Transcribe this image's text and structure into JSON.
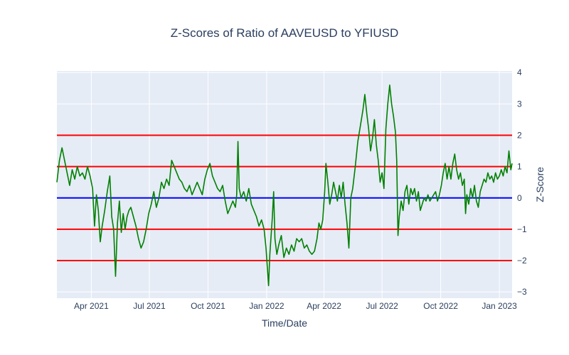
{
  "chart_data": {
    "type": "line",
    "title": "Z-Scores of Ratio of AAVEUSD to YFIUSD",
    "xlabel": "Time/Date",
    "ylabel": "Z-Score",
    "y_axis_side": "right",
    "grid": true,
    "legend": "none",
    "xlim": [
      "2021-02-06",
      "2023-01-21"
    ],
    "ylim": [
      -3.2,
      4.05
    ],
    "x_ticks": [
      {
        "date": "2021-04-01",
        "label": "Apr 2021"
      },
      {
        "date": "2021-07-01",
        "label": "Jul 2021"
      },
      {
        "date": "2021-10-01",
        "label": "Oct 2021"
      },
      {
        "date": "2022-01-01",
        "label": "Jan 2022"
      },
      {
        "date": "2022-04-01",
        "label": "Apr 2022"
      },
      {
        "date": "2022-07-01",
        "label": "Jul 2022"
      },
      {
        "date": "2022-10-01",
        "label": "Oct 2022"
      },
      {
        "date": "2023-01-01",
        "label": "Jan 2023"
      }
    ],
    "y_ticks": [
      {
        "value": 4,
        "label": "4"
      },
      {
        "value": 3,
        "label": "3"
      },
      {
        "value": 2,
        "label": "2"
      },
      {
        "value": 1,
        "label": "1"
      },
      {
        "value": 0,
        "label": "0"
      },
      {
        "value": -1,
        "label": "−1"
      },
      {
        "value": -2,
        "label": "−2"
      },
      {
        "value": -3,
        "label": "−3"
      }
    ],
    "reference_lines": [
      {
        "y": 2,
        "color": "#ff0000"
      },
      {
        "y": 1,
        "color": "#ff0000"
      },
      {
        "y": 0,
        "color": "#0000ff"
      },
      {
        "y": -1,
        "color": "#ff0000"
      },
      {
        "y": -2,
        "color": "#ff0000"
      }
    ],
    "series": [
      {
        "color": "#008000",
        "points": [
          [
            "2021-02-06",
            0.5
          ],
          [
            "2021-02-10",
            1.2
          ],
          [
            "2021-02-14",
            1.6
          ],
          [
            "2021-02-18",
            1.2
          ],
          [
            "2021-02-22",
            0.8
          ],
          [
            "2021-02-26",
            0.4
          ],
          [
            "2021-03-02",
            0.9
          ],
          [
            "2021-03-06",
            0.6
          ],
          [
            "2021-03-10",
            1.0
          ],
          [
            "2021-03-14",
            0.7
          ],
          [
            "2021-03-18",
            0.8
          ],
          [
            "2021-03-22",
            0.6
          ],
          [
            "2021-03-26",
            1.0
          ],
          [
            "2021-03-30",
            0.7
          ],
          [
            "2021-04-03",
            0.3
          ],
          [
            "2021-04-06",
            -0.9
          ],
          [
            "2021-04-09",
            0.1
          ],
          [
            "2021-04-12",
            -0.4
          ],
          [
            "2021-04-15",
            -1.4
          ],
          [
            "2021-04-18",
            -0.9
          ],
          [
            "2021-04-22",
            -0.4
          ],
          [
            "2021-04-26",
            0.2
          ],
          [
            "2021-04-30",
            0.7
          ],
          [
            "2021-05-03",
            -0.6
          ],
          [
            "2021-05-06",
            -1.0
          ],
          [
            "2021-05-09",
            -2.5
          ],
          [
            "2021-05-12",
            -0.8
          ],
          [
            "2021-05-15",
            -0.1
          ],
          [
            "2021-05-18",
            -1.1
          ],
          [
            "2021-05-21",
            -0.5
          ],
          [
            "2021-05-24",
            -1.0
          ],
          [
            "2021-05-27",
            -0.6
          ],
          [
            "2021-05-30",
            -0.4
          ],
          [
            "2021-06-02",
            -0.3
          ],
          [
            "2021-06-06",
            -0.6
          ],
          [
            "2021-06-10",
            -0.9
          ],
          [
            "2021-06-14",
            -1.3
          ],
          [
            "2021-06-18",
            -1.6
          ],
          [
            "2021-06-22",
            -1.4
          ],
          [
            "2021-06-26",
            -1.0
          ],
          [
            "2021-06-30",
            -0.5
          ],
          [
            "2021-07-04",
            -0.2
          ],
          [
            "2021-07-08",
            0.2
          ],
          [
            "2021-07-12",
            -0.3
          ],
          [
            "2021-07-16",
            0.0
          ],
          [
            "2021-07-20",
            0.5
          ],
          [
            "2021-07-24",
            0.3
          ],
          [
            "2021-07-28",
            0.6
          ],
          [
            "2021-08-01",
            0.4
          ],
          [
            "2021-08-05",
            1.2
          ],
          [
            "2021-08-09",
            1.0
          ],
          [
            "2021-08-13",
            0.8
          ],
          [
            "2021-08-17",
            0.6
          ],
          [
            "2021-08-21",
            0.5
          ],
          [
            "2021-08-25",
            0.3
          ],
          [
            "2021-08-29",
            0.2
          ],
          [
            "2021-09-02",
            0.4
          ],
          [
            "2021-09-06",
            0.1
          ],
          [
            "2021-09-10",
            0.3
          ],
          [
            "2021-09-14",
            0.5
          ],
          [
            "2021-09-18",
            0.3
          ],
          [
            "2021-09-22",
            0.1
          ],
          [
            "2021-09-26",
            0.6
          ],
          [
            "2021-09-30",
            0.9
          ],
          [
            "2021-10-04",
            1.1
          ],
          [
            "2021-10-08",
            0.7
          ],
          [
            "2021-10-12",
            0.5
          ],
          [
            "2021-10-16",
            0.3
          ],
          [
            "2021-10-20",
            0.2
          ],
          [
            "2021-10-24",
            0.4
          ],
          [
            "2021-10-28",
            -0.1
          ],
          [
            "2021-11-01",
            -0.5
          ],
          [
            "2021-11-05",
            -0.3
          ],
          [
            "2021-11-09",
            -0.1
          ],
          [
            "2021-11-13",
            -0.3
          ],
          [
            "2021-11-15",
            0.1
          ],
          [
            "2021-11-17",
            1.8
          ],
          [
            "2021-11-19",
            0.3
          ],
          [
            "2021-11-22",
            0.0
          ],
          [
            "2021-11-26",
            0.2
          ],
          [
            "2021-11-30",
            -0.1
          ],
          [
            "2021-12-04",
            0.3
          ],
          [
            "2021-12-08",
            -0.2
          ],
          [
            "2021-12-12",
            -0.4
          ],
          [
            "2021-12-16",
            -0.6
          ],
          [
            "2021-12-20",
            -0.9
          ],
          [
            "2021-12-24",
            -0.7
          ],
          [
            "2021-12-28",
            -1.0
          ],
          [
            "2021-12-31",
            -1.6
          ],
          [
            "2022-01-02",
            -2.2
          ],
          [
            "2022-01-04",
            -2.8
          ],
          [
            "2022-01-06",
            -1.8
          ],
          [
            "2022-01-08",
            -1.2
          ],
          [
            "2022-01-10",
            -0.6
          ],
          [
            "2022-01-12",
            0.2
          ],
          [
            "2022-01-14",
            -1.3
          ],
          [
            "2022-01-17",
            -1.8
          ],
          [
            "2022-01-20",
            -1.5
          ],
          [
            "2022-01-24",
            -1.2
          ],
          [
            "2022-01-28",
            -1.9
          ],
          [
            "2022-02-01",
            -1.6
          ],
          [
            "2022-02-05",
            -1.8
          ],
          [
            "2022-02-09",
            -1.5
          ],
          [
            "2022-02-13",
            -1.7
          ],
          [
            "2022-02-17",
            -1.3
          ],
          [
            "2022-02-21",
            -1.4
          ],
          [
            "2022-02-25",
            -1.3
          ],
          [
            "2022-03-01",
            -1.6
          ],
          [
            "2022-03-05",
            -1.5
          ],
          [
            "2022-03-09",
            -1.7
          ],
          [
            "2022-03-13",
            -1.8
          ],
          [
            "2022-03-17",
            -1.7
          ],
          [
            "2022-03-21",
            -1.3
          ],
          [
            "2022-03-24",
            -0.8
          ],
          [
            "2022-03-27",
            -1.0
          ],
          [
            "2022-03-30",
            -0.7
          ],
          [
            "2022-04-02",
            0.2
          ],
          [
            "2022-04-04",
            1.1
          ],
          [
            "2022-04-07",
            0.5
          ],
          [
            "2022-04-10",
            -0.2
          ],
          [
            "2022-04-13",
            0.1
          ],
          [
            "2022-04-16",
            0.5
          ],
          [
            "2022-04-19",
            0.2
          ],
          [
            "2022-04-22",
            -0.1
          ],
          [
            "2022-04-25",
            0.4
          ],
          [
            "2022-04-28",
            0.0
          ],
          [
            "2022-05-01",
            0.5
          ],
          [
            "2022-05-04",
            -0.2
          ],
          [
            "2022-05-07",
            -0.8
          ],
          [
            "2022-05-10",
            -1.6
          ],
          [
            "2022-05-13",
            0.0
          ],
          [
            "2022-05-16",
            0.3
          ],
          [
            "2022-05-20",
            1.0
          ],
          [
            "2022-05-24",
            1.8
          ],
          [
            "2022-05-28",
            2.3
          ],
          [
            "2022-06-01",
            2.8
          ],
          [
            "2022-06-04",
            3.3
          ],
          [
            "2022-06-07",
            2.7
          ],
          [
            "2022-06-10",
            2.2
          ],
          [
            "2022-06-13",
            1.5
          ],
          [
            "2022-06-16",
            1.9
          ],
          [
            "2022-06-19",
            2.5
          ],
          [
            "2022-06-22",
            1.7
          ],
          [
            "2022-06-25",
            1.2
          ],
          [
            "2022-06-28",
            0.5
          ],
          [
            "2022-07-01",
            0.8
          ],
          [
            "2022-07-04",
            0.3
          ],
          [
            "2022-07-07",
            2.2
          ],
          [
            "2022-07-10",
            3.0
          ],
          [
            "2022-07-13",
            3.6
          ],
          [
            "2022-07-16",
            3.0
          ],
          [
            "2022-07-19",
            2.6
          ],
          [
            "2022-07-22",
            2.1
          ],
          [
            "2022-07-24",
            1.2
          ],
          [
            "2022-07-26",
            -1.2
          ],
          [
            "2022-07-28",
            -0.6
          ],
          [
            "2022-07-31",
            -0.1
          ],
          [
            "2022-08-03",
            -0.4
          ],
          [
            "2022-08-06",
            0.2
          ],
          [
            "2022-08-09",
            0.4
          ],
          [
            "2022-08-12",
            -0.2
          ],
          [
            "2022-08-15",
            0.3
          ],
          [
            "2022-08-18",
            0.1
          ],
          [
            "2022-08-21",
            0.3
          ],
          [
            "2022-08-24",
            -0.1
          ],
          [
            "2022-08-27",
            0.2
          ],
          [
            "2022-08-30",
            -0.4
          ],
          [
            "2022-09-02",
            -0.2
          ],
          [
            "2022-09-05",
            0.0
          ],
          [
            "2022-09-08",
            -0.1
          ],
          [
            "2022-09-11",
            0.1
          ],
          [
            "2022-09-14",
            -0.1
          ],
          [
            "2022-09-17",
            0.0
          ],
          [
            "2022-09-20",
            0.1
          ],
          [
            "2022-09-23",
            0.2
          ],
          [
            "2022-09-26",
            -0.1
          ],
          [
            "2022-09-29",
            0.1
          ],
          [
            "2022-10-02",
            0.4
          ],
          [
            "2022-10-05",
            0.8
          ],
          [
            "2022-10-08",
            1.1
          ],
          [
            "2022-10-11",
            0.6
          ],
          [
            "2022-10-14",
            1.0
          ],
          [
            "2022-10-17",
            0.6
          ],
          [
            "2022-10-20",
            1.1
          ],
          [
            "2022-10-23",
            1.4
          ],
          [
            "2022-10-26",
            0.9
          ],
          [
            "2022-10-29",
            0.6
          ],
          [
            "2022-11-01",
            0.8
          ],
          [
            "2022-11-04",
            0.4
          ],
          [
            "2022-11-07",
            0.6
          ],
          [
            "2022-11-09",
            -0.5
          ],
          [
            "2022-11-11",
            0.1
          ],
          [
            "2022-11-14",
            -0.2
          ],
          [
            "2022-11-17",
            0.3
          ],
          [
            "2022-11-20",
            0.0
          ],
          [
            "2022-11-23",
            0.4
          ],
          [
            "2022-11-26",
            -0.1
          ],
          [
            "2022-11-29",
            -0.3
          ],
          [
            "2022-12-02",
            0.2
          ],
          [
            "2022-12-05",
            0.4
          ],
          [
            "2022-12-08",
            0.6
          ],
          [
            "2022-12-11",
            0.5
          ],
          [
            "2022-12-14",
            0.8
          ],
          [
            "2022-12-17",
            0.6
          ],
          [
            "2022-12-20",
            0.7
          ],
          [
            "2022-12-23",
            0.5
          ],
          [
            "2022-12-26",
            0.8
          ],
          [
            "2022-12-29",
            0.6
          ],
          [
            "2023-01-01",
            0.7
          ],
          [
            "2023-01-04",
            0.9
          ],
          [
            "2023-01-07",
            0.7
          ],
          [
            "2023-01-10",
            1.0
          ],
          [
            "2023-01-13",
            0.8
          ],
          [
            "2023-01-16",
            1.5
          ],
          [
            "2023-01-19",
            0.9
          ],
          [
            "2023-01-21",
            1.1
          ]
        ]
      }
    ]
  }
}
